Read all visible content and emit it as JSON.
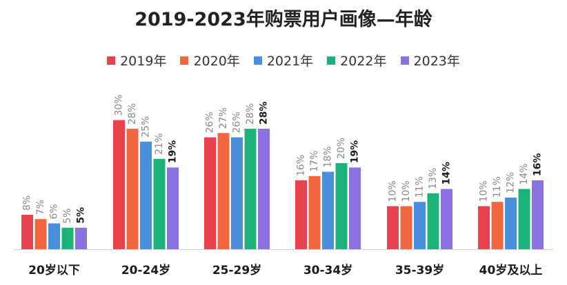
{
  "chart_data": {
    "type": "bar",
    "title": "2019-2023年购票用户画像—年龄",
    "xlabel": "",
    "ylabel": "",
    "ylim": [
      0,
      35
    ],
    "grid": false,
    "legend_position": "top-center",
    "categories": [
      "20岁以下",
      "20-24岁",
      "25-29岁",
      "30-34岁",
      "35-39岁",
      "40岁及以上"
    ],
    "series": [
      {
        "name": "2019年",
        "color": "#e8424e",
        "values": [
          8,
          30,
          26,
          16,
          10,
          10
        ],
        "labels": [
          "8%",
          "30%",
          "26%",
          "16%",
          "10%",
          "10%"
        ]
      },
      {
        "name": "2020年",
        "color": "#f2673f",
        "values": [
          7,
          28,
          27,
          17,
          10,
          11
        ],
        "labels": [
          "7%",
          "28%",
          "27%",
          "17%",
          "10%",
          "11%"
        ]
      },
      {
        "name": "2021年",
        "color": "#4a8fdc",
        "values": [
          6,
          25,
          26,
          18,
          11,
          12
        ],
        "labels": [
          "6%",
          "25%",
          "26%",
          "18%",
          "11%",
          "12%"
        ]
      },
      {
        "name": "2022年",
        "color": "#1bb37b",
        "values": [
          5,
          21,
          28,
          20,
          13,
          14
        ],
        "labels": [
          "5%",
          "21%",
          "28%",
          "20%",
          "13%",
          "14%"
        ]
      },
      {
        "name": "2023年",
        "color": "#8b72e0",
        "values": [
          5,
          19,
          28,
          19,
          14,
          16
        ],
        "labels": [
          "5%",
          "19%",
          "28%",
          "19%",
          "14%",
          "16%"
        ]
      }
    ]
  }
}
